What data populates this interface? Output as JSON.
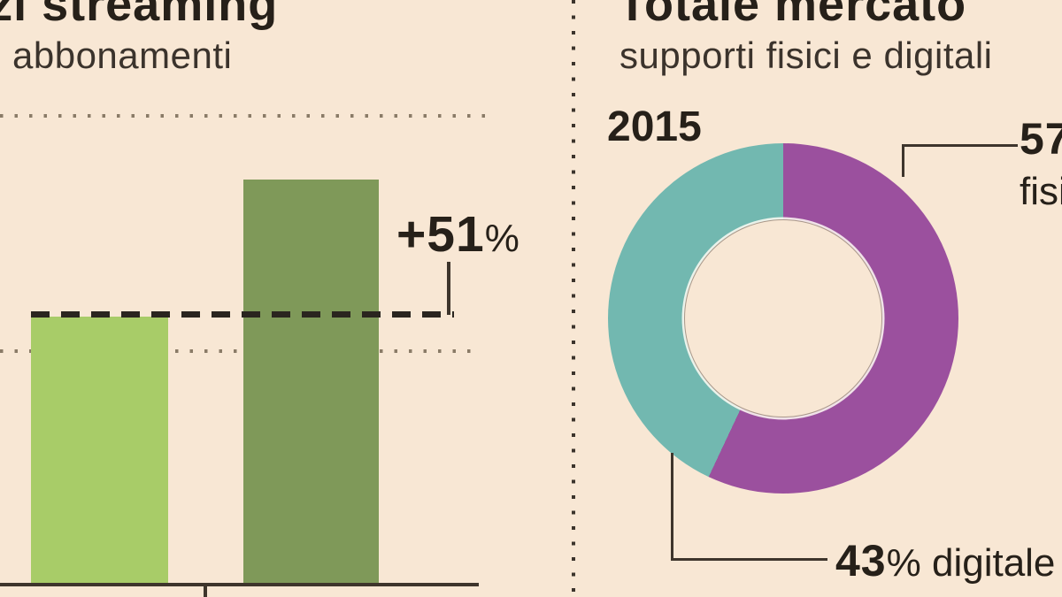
{
  "left_chart": {
    "title": "Servizi streaming",
    "subtitle": "abbonamenti",
    "annotation": {
      "value": "+51",
      "unit": "%"
    }
  },
  "right_chart": {
    "title": "Totale mercato",
    "subtitle": "supporti fisici e digitali",
    "year": "2015",
    "labels": {
      "fisico_value": "57",
      "fisico_unit": "%",
      "fisico_word": "fisico",
      "digitale_value": "43",
      "digitale_rest": "% digitale"
    }
  },
  "chart_data": [
    {
      "type": "bar",
      "title": "Servizi streaming",
      "subtitle": "abbonamenti",
      "categories_visible": false,
      "values_relative": [
        1.0,
        1.51
      ],
      "annotation": "+51%",
      "annotation_meaning": "second bar is 51% higher than first bar",
      "bar_colors": [
        "#a8cc68",
        "#7f9959"
      ],
      "gridlines": "two horizontal dotted lines",
      "reference_line": "dashed line at top of first bar extended to +51% callout"
    },
    {
      "type": "pie",
      "donut": true,
      "title": "Totale mercato",
      "subtitle": "supporti fisici e digitali",
      "year": "2015",
      "start_angle_deg": 0,
      "direction": "clockwise",
      "slices": [
        {
          "label": "fisico",
          "value": 57,
          "color": "#9b509e"
        },
        {
          "label": "digitale",
          "value": 43,
          "color": "#72b8b0"
        }
      ]
    }
  ],
  "colors": {
    "bg": "#f8e7d4",
    "ink": "#262019",
    "ink-soft": "#3b332c",
    "ink-dark": "#2a251f",
    "line": "#3e352c",
    "dot": "#8a7b67",
    "divider_dot": "#3c342c",
    "bar_light": "#a8cc68",
    "bar_dark": "#7f9959",
    "purple": "#9b509e",
    "teal": "#72b8b0"
  }
}
